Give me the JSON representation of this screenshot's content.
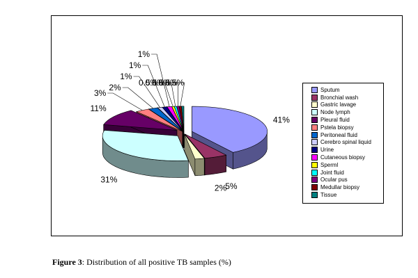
{
  "caption": {
    "prefix": "Figure 3",
    "text": ": Distribution of all positive TB samples (%)"
  },
  "chart_data": {
    "type": "pie",
    "style": "3d-exploded",
    "legend_position": "right",
    "slices": [
      {
        "name": "Sputum",
        "value": 41,
        "label": "41%",
        "color": "#9999ff"
      },
      {
        "name": "Bronchial wash",
        "value": 5,
        "label": "5%",
        "color": "#993366"
      },
      {
        "name": "Gastric lavage",
        "value": 2,
        "label": "2%",
        "color": "#ffffcc"
      },
      {
        "name": "Node lymph",
        "value": 31,
        "label": "31%",
        "color": "#ccffff"
      },
      {
        "name": "Pleural fluid",
        "value": 11,
        "label": "11%",
        "color": "#660066"
      },
      {
        "name": "Pstela biopsy",
        "value": 3,
        "label": "3%",
        "color": "#ff8080"
      },
      {
        "name": "Peritoneal fluid",
        "value": 2,
        "label": "2%",
        "color": "#0066cc"
      },
      {
        "name": "Cerebro spinal liquid",
        "value": 1,
        "label": "1%",
        "color": "#ccccff"
      },
      {
        "name": "Urine",
        "value": 1,
        "label": "1%",
        "color": "#000080"
      },
      {
        "name": "Cutaneous biopsy",
        "value": 1,
        "label": "1%",
        "color": "#ff00ff"
      },
      {
        "name": "Sperml",
        "value": 0.5,
        "label": "0.5%",
        "color": "#ffff00"
      },
      {
        "name": "Joint fluid",
        "value": 0.5,
        "label": "0.5%",
        "color": "#00ffff"
      },
      {
        "name": "Ocular pus",
        "value": 0.5,
        "label": "0.5%",
        "color": "#800080"
      },
      {
        "name": "Medullar biopsy",
        "value": 0.5,
        "label": "0.5%",
        "color": "#800000"
      },
      {
        "name": "Tissue",
        "value": 0.5,
        "label": "0.5%",
        "color": "#008080"
      }
    ]
  }
}
